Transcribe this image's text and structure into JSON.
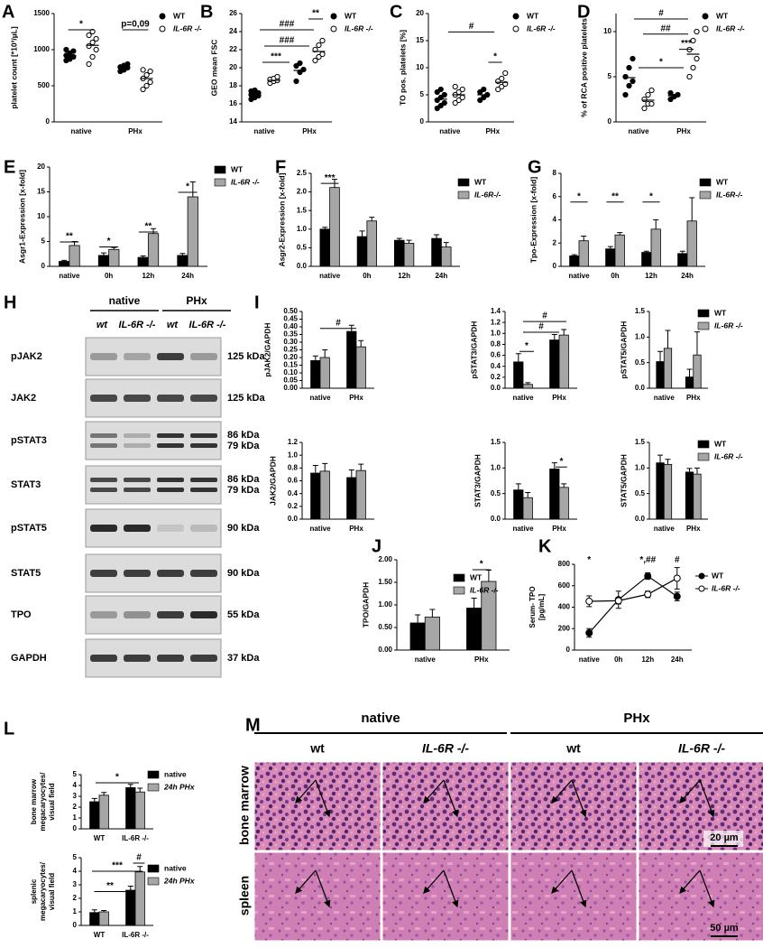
{
  "chart_data": [
    {
      "type": "dot",
      "panel": "A",
      "ylabel": "platelet count [*10³/µL]",
      "categories": [
        "native",
        "PHx"
      ],
      "ylim": [
        0,
        1500
      ],
      "yticks": [
        0,
        500,
        1000,
        1500
      ],
      "series": [
        {
          "name": "WT",
          "color": "#000000",
          "values": [
            [
              850,
              880,
              900,
              920,
              950,
              980,
              1000,
              870
            ],
            [
              700,
              720,
              750,
              760,
              780,
              800
            ]
          ],
          "mean": [
            920,
            750
          ]
        },
        {
          "name": "IL-6R -/-",
          "color": "#ffffff",
          "values": [
            [
              800,
              900,
              1000,
              1050,
              1100,
              1150,
              1200,
              1250
            ],
            [
              450,
              500,
              550,
              600,
              650,
              700,
              720
            ]
          ],
          "mean": [
            1060,
            600
          ]
        }
      ],
      "annotations": [
        "*",
        "p=0,09"
      ]
    },
    {
      "type": "dot",
      "panel": "B",
      "ylabel": "GEO mean FSC",
      "categories": [
        "native",
        "PHx"
      ],
      "ylim": [
        14,
        26
      ],
      "yticks": [
        14,
        16,
        18,
        20,
        22,
        24,
        26
      ],
      "series": [
        {
          "name": "WT",
          "color": "#000000",
          "values": [
            [
              16.5,
              16.7,
              16.9,
              17.0,
              17.1,
              17.2,
              17.4,
              17.5
            ],
            [
              18.5,
              19.5,
              19.8,
              20.2,
              20.5
            ]
          ],
          "mean": [
            17.0,
            19.7
          ]
        },
        {
          "name": "IL-6R -/-",
          "color": "#ffffff",
          "values": [
            [
              18.3,
              18.5,
              18.6,
              18.7,
              18.8,
              19.0
            ],
            [
              20.8,
              21.2,
              21.5,
              22.0,
              22.5,
              23.0
            ]
          ],
          "mean": [
            18.6,
            21.8
          ]
        }
      ],
      "annotations": [
        "**",
        "###",
        "###",
        "***"
      ]
    },
    {
      "type": "dot",
      "panel": "C",
      "ylabel": "TO pos. platelets [%]",
      "categories": [
        "native",
        "PHx"
      ],
      "ylim": [
        0,
        20
      ],
      "yticks": [
        0,
        5,
        10,
        15,
        20
      ],
      "series": [
        {
          "name": "WT",
          "color": "#000000",
          "values": [
            [
              2.5,
              3,
              3.5,
              4,
              4.5,
              5,
              5.5,
              6
            ],
            [
              4,
              4.5,
              5,
              5.5,
              6
            ]
          ],
          "mean": [
            4.2,
            5
          ]
        },
        {
          "name": "IL-6R -/-",
          "color": "#ffffff",
          "values": [
            [
              3.5,
              4,
              4.5,
              5,
              5.5,
              6,
              6.5
            ],
            [
              6,
              6.5,
              7,
              7.5,
              8,
              9
            ]
          ],
          "mean": [
            5,
            7.3
          ]
        }
      ],
      "annotations": [
        "#",
        "*"
      ]
    },
    {
      "type": "dot",
      "panel": "D",
      "ylabel": "% of RCA positive platelets",
      "categories": [
        "native",
        "PHx"
      ],
      "ylim": [
        0,
        12
      ],
      "yticks": [
        0,
        5,
        10
      ],
      "series": [
        {
          "name": "WT",
          "color": "#000000",
          "values": [
            [
              3,
              4,
              4.5,
              5,
              6,
              7
            ],
            [
              2.5,
              2.8,
              3,
              3.2
            ]
          ],
          "mean": [
            4.9,
            2.9
          ]
        },
        {
          "name": "IL-6R -/-",
          "color": "#ffffff",
          "values": [
            [
              1.5,
              2,
              2,
              2.5,
              3,
              3.5
            ],
            [
              5,
              6,
              7,
              8,
              9,
              10
            ]
          ],
          "mean": [
            2.4,
            7.5
          ]
        }
      ],
      "annotations": [
        "#",
        "##",
        "***",
        "*"
      ]
    },
    {
      "type": "bar",
      "panel": "E",
      "ylabel": "Asgr1-Expression [x-fold]",
      "categories": [
        "native",
        "0h",
        "12h",
        "24h"
      ],
      "ylim": [
        0,
        20
      ],
      "yticks": [
        0,
        5,
        10,
        15,
        20
      ],
      "series": [
        {
          "name": "WT",
          "color": "#000000",
          "values": [
            1,
            2.2,
            1.8,
            2.2
          ],
          "errors": [
            0.2,
            0.5,
            0.3,
            0.4
          ]
        },
        {
          "name": "IL-6R -/-",
          "color": "#a6a6a6",
          "values": [
            4.2,
            3.4,
            6.6,
            14
          ],
          "errors": [
            0.8,
            0.4,
            1,
            3
          ]
        }
      ],
      "annotations": [
        "**",
        "*",
        "**",
        "*"
      ]
    },
    {
      "type": "bar",
      "panel": "F",
      "ylabel": "Asgr2-Expression [x-fold]",
      "categories": [
        "native",
        "0h",
        "12h",
        "24h"
      ],
      "ylim": [
        0,
        2.5
      ],
      "yticks": [
        {
          "value": 0,
          "label": "0.0"
        },
        0.5,
        {
          "value": 1,
          "label": "1.0"
        },
        1.5,
        {
          "value": 2,
          "label": "2.0"
        },
        2.5
      ],
      "series": [
        {
          "name": "WT",
          "color": "#000000",
          "values": [
            1.0,
            0.8,
            0.7,
            0.75
          ],
          "errors": [
            0.05,
            0.15,
            0.05,
            0.1
          ]
        },
        {
          "name": "IL-6R-/-",
          "color": "#a6a6a6",
          "values": [
            2.12,
            1.22,
            0.62,
            0.52
          ],
          "errors": [
            0.22,
            0.1,
            0.08,
            0.12
          ]
        }
      ],
      "annotations": [
        "***"
      ]
    },
    {
      "type": "bar",
      "panel": "G",
      "ylabel": "Tpo-Expression [x-fold]",
      "categories": [
        "native",
        "0h",
        "12h",
        "24h"
      ],
      "ylim": [
        0,
        8
      ],
      "yticks": [
        0,
        2,
        4,
        6,
        8
      ],
      "series": [
        {
          "name": "WT",
          "color": "#000000",
          "values": [
            0.9,
            1.5,
            1.2,
            1.1
          ],
          "errors": [
            0.1,
            0.2,
            0.1,
            0.2
          ]
        },
        {
          "name": "IL-6R-/-",
          "color": "#a6a6a6",
          "values": [
            2.2,
            2.7,
            3.2,
            3.9
          ],
          "errors": [
            0.4,
            0.2,
            0.8,
            2
          ]
        }
      ],
      "annotations": [
        "*",
        "**",
        "*"
      ]
    },
    {
      "type": "bar",
      "panel": "I",
      "ylabel": "pJAK2/GAPDH",
      "categories": [
        "native",
        "PHx"
      ],
      "ylim": [
        0,
        0.5
      ],
      "yticks": [
        {
          "value": 0,
          "label": "0.00"
        },
        0.05,
        {
          "value": 0.1,
          "label": "0.10"
        },
        0.15,
        {
          "value": 0.2,
          "label": "0.20"
        },
        0.25,
        {
          "value": 0.3,
          "label": "0.30"
        },
        0.35,
        {
          "value": 0.4,
          "label": "0.40"
        },
        0.45,
        {
          "value": 0.5,
          "label": "0.50"
        }
      ],
      "series": [
        {
          "color": "#000000",
          "values": [
            0.18,
            0.37
          ],
          "errors": [
            0.03,
            0.04
          ]
        },
        {
          "color": "#a6a6a6",
          "values": [
            0.2,
            0.27
          ],
          "errors": [
            0.05,
            0.04
          ]
        }
      ],
      "annotations": [
        "#"
      ]
    },
    {
      "type": "bar",
      "ylabel": "pSTAT3/GAPDH",
      "categories": [
        "native",
        "PHx"
      ],
      "ylim": [
        0,
        1.4
      ],
      "yticks": [
        {
          "value": 0,
          "label": "0.0"
        },
        0.2,
        0.4,
        0.6,
        0.8,
        {
          "value": 1,
          "label": "1.0"
        },
        1.2,
        1.4
      ],
      "series": [
        {
          "color": "#000000",
          "values": [
            0.48,
            0.88
          ],
          "errors": [
            0.15,
            0.1
          ]
        },
        {
          "color": "#a6a6a6",
          "values": [
            0.07,
            0.97
          ],
          "errors": [
            0.03,
            0.1
          ]
        }
      ],
      "annotations": [
        "#",
        "#",
        "*"
      ]
    },
    {
      "type": "bar",
      "ylabel": "pSTAT5/GAPDH",
      "categories": [
        "native",
        "PHx"
      ],
      "ylim": [
        0,
        1.5
      ],
      "yticks": [
        {
          "value": 0,
          "label": "0.0"
        },
        0.5,
        {
          "value": 1,
          "label": "1.0"
        },
        1.5
      ],
      "series": [
        {
          "name": "WT",
          "color": "#000000",
          "values": [
            0.52,
            0.22
          ],
          "errors": [
            0.2,
            0.15
          ]
        },
        {
          "name": "IL-6R -/-",
          "color": "#a6a6a6",
          "values": [
            0.78,
            0.65
          ],
          "errors": [
            0.35,
            0.45
          ]
        }
      ],
      "annotations": []
    },
    {
      "type": "bar",
      "ylabel": "JAK2/GAPDH",
      "categories": [
        "native",
        "PHx"
      ],
      "ylim": [
        0,
        1.2
      ],
      "yticks": [
        {
          "value": 0,
          "label": "0.0"
        },
        0.2,
        0.4,
        0.6,
        0.8,
        {
          "value": 1,
          "label": "1.0"
        },
        1.2
      ],
      "series": [
        {
          "color": "#000000",
          "values": [
            0.72,
            0.65
          ],
          "errors": [
            0.12,
            0.12
          ]
        },
        {
          "color": "#a6a6a6",
          "values": [
            0.75,
            0.76
          ],
          "errors": [
            0.12,
            0.1
          ]
        }
      ],
      "annotations": []
    },
    {
      "type": "bar",
      "ylabel": "STAT3/GAPDH",
      "categories": [
        "native",
        "PHx"
      ],
      "ylim": [
        0,
        1.5
      ],
      "yticks": [
        {
          "value": 0,
          "label": "0.0"
        },
        0.5,
        {
          "value": 1,
          "label": "1.0"
        },
        1.5
      ],
      "series": [
        {
          "color": "#000000",
          "values": [
            0.57,
            0.98
          ],
          "errors": [
            0.12,
            0.12
          ]
        },
        {
          "color": "#a6a6a6",
          "values": [
            0.42,
            0.62
          ],
          "errors": [
            0.1,
            0.07
          ]
        }
      ],
      "annotations": [
        "*"
      ]
    },
    {
      "type": "bar",
      "ylabel": "STAT5/GAPDH",
      "categories": [
        "native",
        "PHx"
      ],
      "ylim": [
        0,
        1.5
      ],
      "yticks": [
        {
          "value": 0,
          "label": "0.0"
        },
        0.5,
        {
          "value": 1,
          "label": "1.0"
        },
        1.5
      ],
      "series": [
        {
          "name": "WT",
          "color": "#000000",
          "values": [
            1.1,
            0.92
          ],
          "errors": [
            0.15,
            0.07
          ]
        },
        {
          "name": "IL-6R -/-",
          "color": "#a6a6a6",
          "values": [
            1.07,
            0.88
          ],
          "errors": [
            0.1,
            0.12
          ]
        }
      ],
      "annotations": []
    },
    {
      "type": "bar",
      "panel": "J",
      "ylabel": "TPO/GAPDH",
      "categories": [
        "native",
        "PHx"
      ],
      "ylim": [
        0,
        2
      ],
      "yticks": [
        {
          "value": 0,
          "label": "0.00"
        },
        {
          "value": 0.5,
          "label": "0.50"
        },
        {
          "value": 1,
          "label": "1.00"
        },
        {
          "value": 1.5,
          "label": "1.50"
        },
        {
          "value": 2,
          "label": "2.00"
        }
      ],
      "series": [
        {
          "name": "WT",
          "color": "#000000",
          "values": [
            0.6,
            0.93
          ],
          "errors": [
            0.18,
            0.22
          ]
        },
        {
          "name": "IL-6R -/-",
          "color": "#a6a6a6",
          "values": [
            0.73,
            1.52
          ],
          "errors": [
            0.17,
            0.25
          ]
        }
      ],
      "annotations": [
        "*"
      ]
    },
    {
      "type": "line",
      "panel": "K",
      "ylabel": [
        "Serum- TPO",
        "[pg/mL]"
      ],
      "categories": [
        "native",
        "0h",
        "12h",
        "24h"
      ],
      "ylim": [
        0,
        800
      ],
      "yticks": [
        0,
        200,
        400,
        600,
        800
      ],
      "series": [
        {
          "name": "WT",
          "color": "#000000",
          "values": [
            160,
            470,
            690,
            500
          ],
          "errors": [
            40,
            80,
            30,
            40
          ]
        },
        {
          "name": "IL-6R -/-",
          "color": "#ffffff",
          "values": [
            455,
            460,
            520,
            670
          ],
          "errors": [
            50,
            30,
            30,
            100
          ]
        }
      ],
      "annotations": [
        "*",
        "*,##",
        "#"
      ]
    },
    {
      "type": "bar",
      "panel": "L",
      "ylabel": [
        "bone marrow",
        "megacaryocytes/",
        "visual field"
      ],
      "categories": [
        "WT",
        "IL-6R -/-"
      ],
      "ylim": [
        0,
        5
      ],
      "yticks": [
        0,
        1,
        2,
        3,
        4,
        5
      ],
      "series": [
        {
          "name": "native",
          "color": "#000000",
          "values": [
            2.5,
            3.8
          ],
          "errors": [
            0.3,
            0.3
          ]
        },
        {
          "name": "24h PHx",
          "color": "#a6a6a6",
          "values": [
            3.1,
            3.4
          ],
          "errors": [
            0.25,
            0.35
          ]
        }
      ],
      "annotations": [
        "*"
      ]
    },
    {
      "type": "bar",
      "ylabel": [
        "splenic",
        "megacaryocytes/",
        "visual field"
      ],
      "categories": [
        "WT",
        "IL-6R -/-"
      ],
      "ylim": [
        0,
        5
      ],
      "yticks": [
        0,
        1,
        2,
        3,
        4,
        5
      ],
      "series": [
        {
          "name": "native",
          "color": "#000000",
          "values": [
            0.95,
            2.6
          ],
          "errors": [
            0.2,
            0.3
          ]
        },
        {
          "name": "24h PHx",
          "color": "#a6a6a6",
          "values": [
            1.0,
            3.95
          ],
          "errors": [
            0.1,
            0.4
          ]
        }
      ],
      "annotations": [
        "#",
        "***",
        "**"
      ]
    }
  ],
  "blot": {
    "panel": "H",
    "groups": [
      "native",
      "PHx"
    ],
    "lanes": [
      "wt",
      "IL-6R -/-",
      "wt",
      "IL-6R -/-"
    ],
    "rows": [
      {
        "name": "pJAK2",
        "sizes": [
          "125 kDa"
        ]
      },
      {
        "name": "JAK2",
        "sizes": [
          "125 kDa"
        ]
      },
      {
        "name": "pSTAT3",
        "sizes": [
          "86 kDa",
          "79 kDa"
        ]
      },
      {
        "name": "STAT3",
        "sizes": [
          "86 kDa",
          "79 kDa"
        ]
      },
      {
        "name": "pSTAT5",
        "sizes": [
          "90 kDa"
        ]
      },
      {
        "name": "STAT5",
        "sizes": [
          "90  kDa"
        ]
      },
      {
        "name": "TPO",
        "sizes": [
          "55 kDa"
        ]
      },
      {
        "name": "GAPDH",
        "sizes": [
          "37 kDa"
        ]
      }
    ]
  },
  "histology": {
    "panel": "M",
    "groups": [
      "native",
      "PHx"
    ],
    "columns": [
      "wt",
      "IL-6R -/-",
      "wt",
      "IL-6R -/-"
    ],
    "rows": [
      "bone marrow",
      "spleen"
    ],
    "scale_bars": [
      "20 µm",
      "50 µm"
    ]
  }
}
